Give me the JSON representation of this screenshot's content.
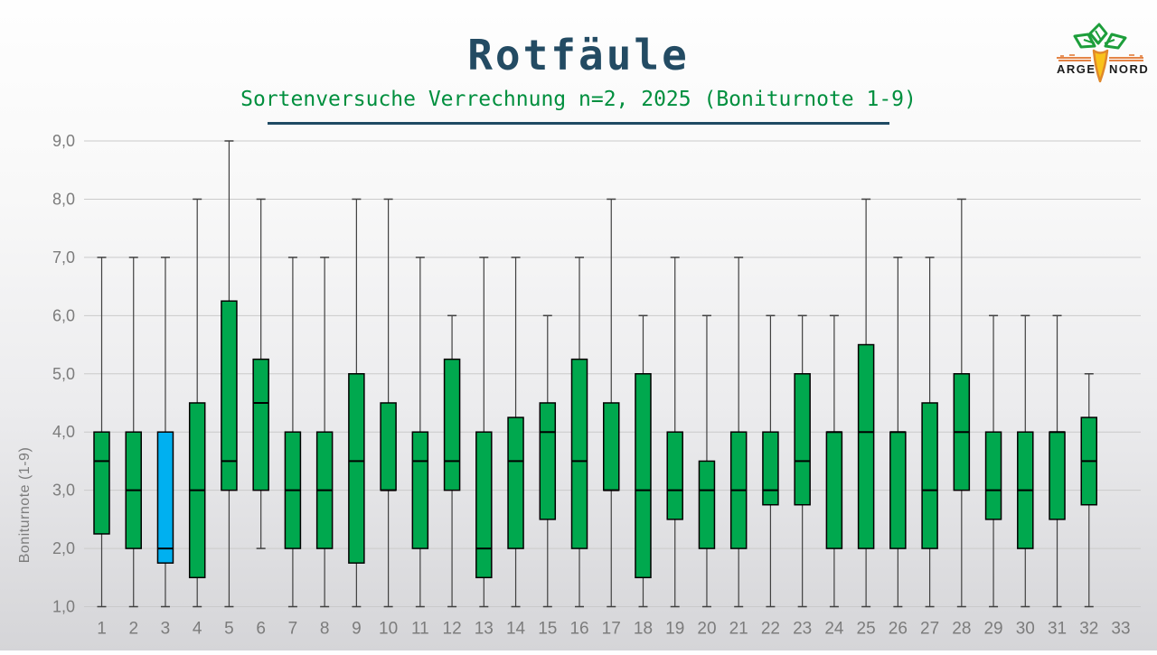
{
  "header": {
    "title": "Rotfäule",
    "subtitle": "Sortenversuche Verrechnung n=2, 2025 (Boniturnote 1-9)",
    "title_color": "#234b63",
    "subtitle_color": "#008f3e",
    "underline_color": "#1f4a63"
  },
  "logo": {
    "text_left": "ARGE",
    "text_right": "NORD",
    "leaf_color": "#1d9e3b",
    "carrot_fill": "#f9c21b",
    "carrot_stroke": "#e0882a",
    "line_color": "#e0732c",
    "text_color": "#1a1a1a"
  },
  "chart_data": {
    "type": "boxplot",
    "title": "Rotfäule",
    "subtitle": "Sortenversuche Verrechnung n=2, 2025 (Boniturnote 1-9)",
    "xlabel": "",
    "ylabel": "Boniturnote (1-9)",
    "ylim": [
      1.0,
      9.0
    ],
    "ytick_step": 1.0,
    "ytick_labels": [
      "1,0",
      "2,0",
      "3,0",
      "4,0",
      "5,0",
      "6,0",
      "7,0",
      "8,0",
      "9,0"
    ],
    "grid": true,
    "grid_color": "#cacaca",
    "axis_label_color": "#7c7c7c",
    "box_fill_default": "#00a84e",
    "box_fill_highlight": "#00b0f0",
    "box_border_color": "#000000",
    "whisker_color": "#404040",
    "highlight_category": "3",
    "categories": [
      "1",
      "2",
      "3",
      "4",
      "5",
      "6",
      "7",
      "8",
      "9",
      "10",
      "11",
      "12",
      "13",
      "14",
      "15",
      "16",
      "17",
      "18",
      "19",
      "20",
      "21",
      "22",
      "23",
      "24",
      "25",
      "26",
      "27",
      "28",
      "29",
      "30",
      "31",
      "32",
      "33"
    ],
    "boxes": [
      {
        "category": "1",
        "low": 1.0,
        "q1": 2.25,
        "median": 3.5,
        "q3": 4.0,
        "high": 7.0
      },
      {
        "category": "2",
        "low": 1.0,
        "q1": 2.0,
        "median": 3.0,
        "q3": 4.0,
        "high": 7.0
      },
      {
        "category": "3",
        "low": 1.0,
        "q1": 1.75,
        "median": 2.0,
        "q3": 4.0,
        "high": 7.0,
        "fill": "#00b0f0"
      },
      {
        "category": "4",
        "low": 1.0,
        "q1": 1.5,
        "median": 3.0,
        "q3": 4.5,
        "high": 8.0
      },
      {
        "category": "5",
        "low": 1.0,
        "q1": 3.0,
        "median": 3.5,
        "q3": 6.25,
        "high": 9.0
      },
      {
        "category": "6",
        "low": 2.0,
        "q1": 3.0,
        "median": 4.5,
        "q3": 5.25,
        "high": 8.0
      },
      {
        "category": "7",
        "low": 1.0,
        "q1": 2.0,
        "median": 3.0,
        "q3": 4.0,
        "high": 7.0
      },
      {
        "category": "8",
        "low": 1.0,
        "q1": 2.0,
        "median": 3.0,
        "q3": 4.0,
        "high": 7.0
      },
      {
        "category": "9",
        "low": 1.0,
        "q1": 1.75,
        "median": 3.5,
        "q3": 5.0,
        "high": 8.0
      },
      {
        "category": "10",
        "low": 1.0,
        "q1": 3.0,
        "median": 3.0,
        "q3": 4.5,
        "high": 8.0
      },
      {
        "category": "11",
        "low": 1.0,
        "q1": 2.0,
        "median": 3.5,
        "q3": 4.0,
        "high": 7.0
      },
      {
        "category": "12",
        "low": 1.0,
        "q1": 3.0,
        "median": 3.5,
        "q3": 5.25,
        "high": 6.0
      },
      {
        "category": "13",
        "low": 1.0,
        "q1": 1.5,
        "median": 2.0,
        "q3": 4.0,
        "high": 7.0
      },
      {
        "category": "14",
        "low": 1.0,
        "q1": 2.0,
        "median": 3.5,
        "q3": 4.25,
        "high": 7.0
      },
      {
        "category": "15",
        "low": 1.0,
        "q1": 2.5,
        "median": 4.0,
        "q3": 4.5,
        "high": 6.0
      },
      {
        "category": "16",
        "low": 1.0,
        "q1": 2.0,
        "median": 3.5,
        "q3": 5.25,
        "high": 7.0
      },
      {
        "category": "17",
        "low": 1.0,
        "q1": 3.0,
        "median": 3.0,
        "q3": 4.5,
        "high": 8.0
      },
      {
        "category": "18",
        "low": 1.0,
        "q1": 1.5,
        "median": 3.0,
        "q3": 5.0,
        "high": 6.0
      },
      {
        "category": "19",
        "low": 1.0,
        "q1": 2.5,
        "median": 3.0,
        "q3": 4.0,
        "high": 7.0
      },
      {
        "category": "20",
        "low": 1.0,
        "q1": 2.0,
        "median": 3.0,
        "q3": 3.5,
        "high": 6.0
      },
      {
        "category": "21",
        "low": 1.0,
        "q1": 2.0,
        "median": 3.0,
        "q3": 4.0,
        "high": 7.0
      },
      {
        "category": "22",
        "low": 1.0,
        "q1": 2.75,
        "median": 3.0,
        "q3": 4.0,
        "high": 6.0
      },
      {
        "category": "23",
        "low": 1.0,
        "q1": 2.75,
        "median": 3.5,
        "q3": 5.0,
        "high": 6.0
      },
      {
        "category": "24",
        "low": 1.0,
        "q1": 2.0,
        "median": 4.0,
        "q3": 4.0,
        "high": 6.0
      },
      {
        "category": "25",
        "low": 1.0,
        "q1": 2.0,
        "median": 4.0,
        "q3": 5.5,
        "high": 8.0
      },
      {
        "category": "26",
        "low": 1.0,
        "q1": 2.0,
        "median": 4.0,
        "q3": 4.0,
        "high": 7.0
      },
      {
        "category": "27",
        "low": 1.0,
        "q1": 2.0,
        "median": 3.0,
        "q3": 4.5,
        "high": 7.0
      },
      {
        "category": "28",
        "low": 1.0,
        "q1": 3.0,
        "median": 4.0,
        "q3": 5.0,
        "high": 8.0
      },
      {
        "category": "29",
        "low": 1.0,
        "q1": 2.5,
        "median": 3.0,
        "q3": 4.0,
        "high": 6.0
      },
      {
        "category": "30",
        "low": 1.0,
        "q1": 2.0,
        "median": 3.0,
        "q3": 4.0,
        "high": 6.0
      },
      {
        "category": "31",
        "low": 1.0,
        "q1": 2.5,
        "median": 4.0,
        "q3": 4.0,
        "high": 6.0
      },
      {
        "category": "32",
        "low": 1.0,
        "q1": 2.75,
        "median": 3.5,
        "q3": 4.25,
        "high": 5.0
      },
      null
    ],
    "legend": null
  }
}
